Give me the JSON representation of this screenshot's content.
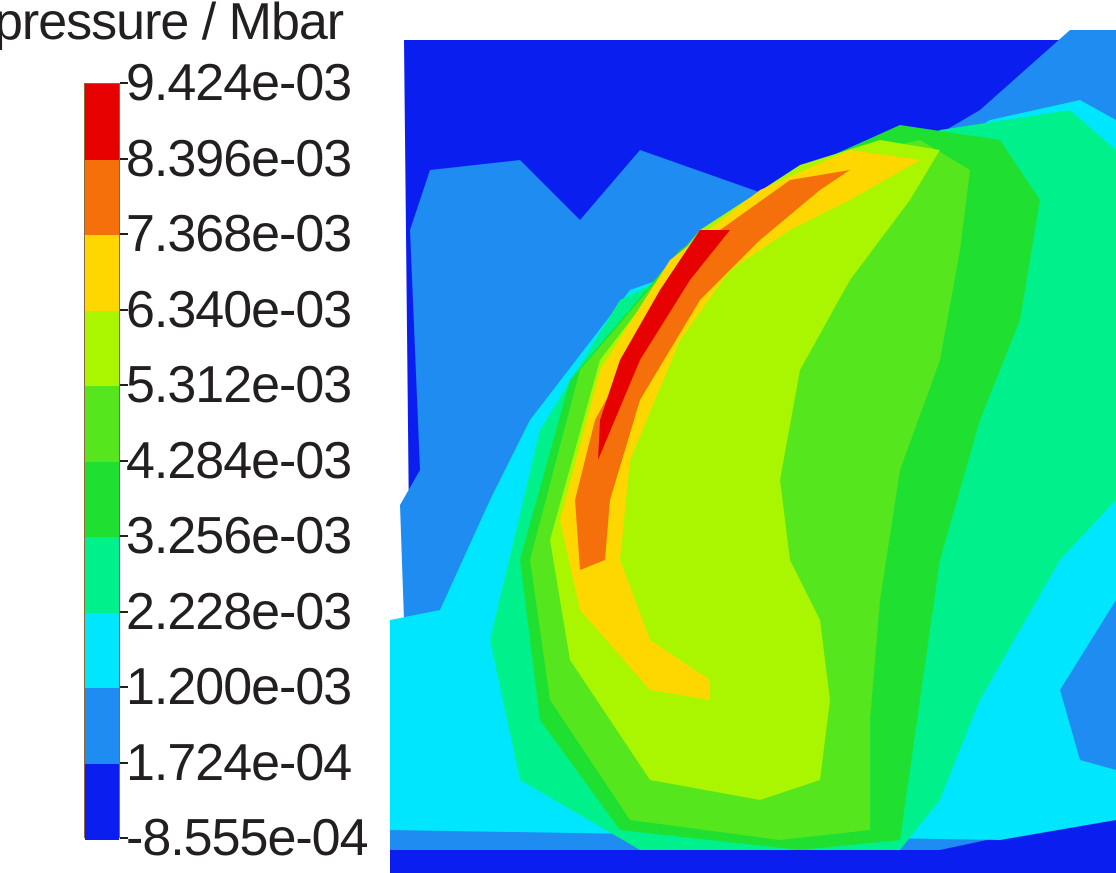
{
  "chart_data": {
    "type": "heatmap",
    "subtype": "filled-contour",
    "legend_title": "pressure / Mbar",
    "colorbar": {
      "levels": [
        "9.424e-03",
        "8.396e-03",
        "7.368e-03",
        "6.340e-03",
        "5.312e-03",
        "4.284e-03",
        "3.256e-03",
        "2.228e-03",
        "1.200e-03",
        "1.724e-04",
        "-8.555e-04"
      ],
      "level_values": [
        0.009424,
        0.008396,
        0.007368,
        0.00634,
        0.005312,
        0.004284,
        0.003256,
        0.002228,
        0.0012,
        0.0001724,
        -0.0008555
      ],
      "colors": [
        "#e60000",
        "#f5700a",
        "#ffd700",
        "#aaf500",
        "#55e61e",
        "#1fe030",
        "#00f08c",
        "#00e6ff",
        "#1e8cf0",
        "#0a1ef0"
      ],
      "range": [
        -0.0008555,
        0.009424
      ],
      "placement": "left"
    }
  }
}
